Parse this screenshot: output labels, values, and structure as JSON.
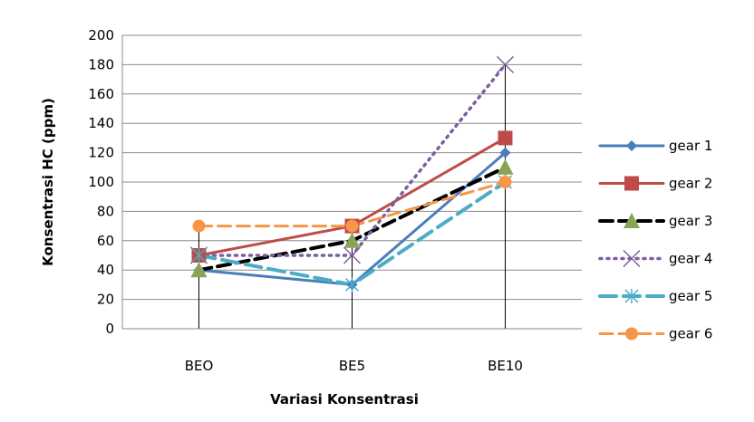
{
  "chart_data": {
    "type": "line",
    "categories": [
      "BEO",
      "BE5",
      "BE10"
    ],
    "series": [
      {
        "name": "gear 1",
        "values": [
          40,
          30,
          120
        ],
        "color": "#4a7ebb",
        "dash": "solid",
        "marker": "diamond"
      },
      {
        "name": "gear 2",
        "values": [
          50,
          70,
          130
        ],
        "color": "#be4b48",
        "dash": "solid",
        "marker": "square"
      },
      {
        "name": "gear 3",
        "values": [
          40,
          60,
          110
        ],
        "color": "#000000",
        "dash": "dash",
        "marker": "triangle"
      },
      {
        "name": "gear 4",
        "values": [
          50,
          50,
          180
        ],
        "color": "#7d5fa0",
        "dash": "dot",
        "marker": "x"
      },
      {
        "name": "gear 5",
        "values": [
          50,
          30,
          100
        ],
        "color": "#4bacc6",
        "dash": "dashdot",
        "marker": "star"
      },
      {
        "name": "gear 6",
        "values": [
          70,
          70,
          100
        ],
        "color": "#f79646",
        "dash": "dash",
        "marker": "circle"
      }
    ],
    "y_ticks": [
      "0",
      "20",
      "40",
      "60",
      "80",
      "100",
      "120",
      "140",
      "160",
      "180",
      "200"
    ],
    "ylim": [
      0,
      200
    ],
    "ylabel": "Konsentrasi HC (ppm)",
    "xlabel": "Variasi Konsentrasi",
    "grid": true,
    "legend_position": "right"
  }
}
